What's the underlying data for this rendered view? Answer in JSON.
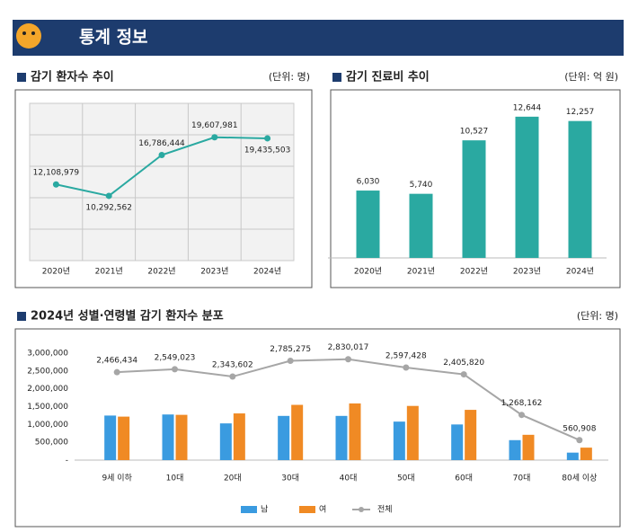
{
  "header": {
    "title": "통계 정보"
  },
  "chart_data": [
    {
      "type": "line",
      "title": "감기 환자수 추이",
      "unit": "(단위: 명)",
      "categories": [
        "2020년",
        "2021년",
        "2022년",
        "2023년",
        "2024년"
      ],
      "values": [
        12108979,
        10292562,
        16786444,
        19607981,
        19435503
      ],
      "value_labels": [
        "12,108,979",
        "10,292,562",
        "16,786,444",
        "19,607,981",
        "19,435,503"
      ],
      "color": "#2aa9a1",
      "ylim": [
        0,
        25000000
      ],
      "yticks": [
        0,
        5000000,
        10000000,
        15000000,
        20000000,
        25000000
      ],
      "tick_labels": false,
      "grid": true
    },
    {
      "type": "bar",
      "title": "감기 진료비 추이",
      "unit": "(단위: 억 원)",
      "categories": [
        "2020년",
        "2021년",
        "2022년",
        "2023년",
        "2024년"
      ],
      "values": [
        6030,
        5740,
        10527,
        12644,
        12257
      ],
      "value_labels": [
        "6,030",
        "5,740",
        "10,527",
        "12,644",
        "12,257"
      ],
      "color": "#2aa9a1",
      "ylim": [
        0,
        14000
      ]
    },
    {
      "type": "combo",
      "title": "2024년 성별·연령별 감기 환자수 분포",
      "unit": "(단위: 명)",
      "categories": [
        "9세 이하",
        "10대",
        "20대",
        "30대",
        "40대",
        "50대",
        "60대",
        "70대",
        "80세 이상"
      ],
      "series": [
        {
          "name": "남",
          "type": "bar",
          "color": "#3a9be0",
          "values": [
            1250000,
            1280000,
            1030000,
            1240000,
            1240000,
            1080000,
            1000000,
            560000,
            210000
          ]
        },
        {
          "name": "여",
          "type": "bar",
          "color": "#f08a24",
          "values": [
            1220000,
            1270000,
            1310000,
            1550000,
            1590000,
            1520000,
            1410000,
            710000,
            350000
          ]
        },
        {
          "name": "전체",
          "type": "line",
          "color": "#a6a6a6",
          "values": [
            2466434,
            2549023,
            2343602,
            2785275,
            2830017,
            2597428,
            2405820,
            1268162,
            560908
          ],
          "value_labels": [
            "2,466,434",
            "2,549,023",
            "2,343,602",
            "2,785,275",
            "2,830,017",
            "2,597,428",
            "2,405,820",
            "1,268,162",
            "560,908"
          ]
        }
      ],
      "ylim": [
        0,
        3000000
      ],
      "yticks": [
        {
          "value": 0,
          "label": "-"
        },
        {
          "value": 500000,
          "label": "500,000"
        },
        {
          "value": 1000000,
          "label": "1,000,000"
        },
        {
          "value": 1500000,
          "label": "1,500,000"
        },
        {
          "value": 2000000,
          "label": "2,000,000"
        },
        {
          "value": 2500000,
          "label": "2,500,000"
        },
        {
          "value": 3000000,
          "label": "3,000,000"
        }
      ],
      "tick_labels": true,
      "grid": false,
      "legend": "bottom"
    }
  ]
}
